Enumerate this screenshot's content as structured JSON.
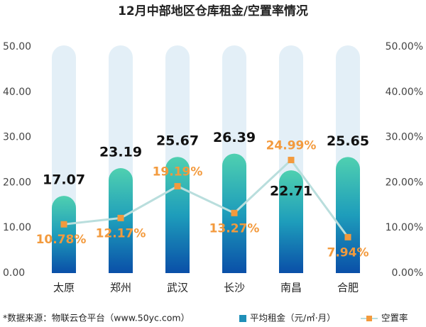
{
  "chart_data": {
    "type": "bar",
    "title": "12月中部地区仓库租金/空置率情况",
    "categories": [
      "太原",
      "郑州",
      "武汉",
      "长沙",
      "南昌",
      "合肥"
    ],
    "series": [
      {
        "name": "平均租金（元/㎡·月）",
        "color": "#1f8fb8",
        "values": [
          17.07,
          23.19,
          25.67,
          26.39,
          22.71,
          25.65
        ]
      },
      {
        "name": "空置率",
        "type": "line",
        "axis": "y2",
        "color": "#f39a3d",
        "line_color": "#b9dedd",
        "values": [
          10.78,
          12.17,
          19.19,
          13.27,
          24.99,
          7.94
        ],
        "value_labels": [
          "10.78%",
          "12.17%",
          "19.19%",
          "13.27%",
          "24.99%",
          "7.94%"
        ]
      }
    ],
    "ylim": [
      0,
      50
    ],
    "yticks": [
      {
        "value": 0,
        "label": "0.00"
      },
      {
        "value": 10,
        "label": "10.00"
      },
      {
        "value": 20,
        "label": "20.00"
      },
      {
        "value": 30,
        "label": "30.00"
      },
      {
        "value": 40,
        "label": "40.00"
      },
      {
        "value": 50,
        "label": "50.00"
      }
    ],
    "y2lim": [
      0,
      50
    ],
    "y2ticks": [
      {
        "value": 0,
        "label": "0.00%"
      },
      {
        "value": 10,
        "label": "10.00%"
      },
      {
        "value": 20,
        "label": "20.00%"
      },
      {
        "value": 30,
        "label": "30.00%"
      },
      {
        "value": 40,
        "label": "40.00%"
      },
      {
        "value": 50,
        "label": "50.00%"
      }
    ],
    "source": "*数据来源：物联云仓平台（www.50yc.com）"
  }
}
